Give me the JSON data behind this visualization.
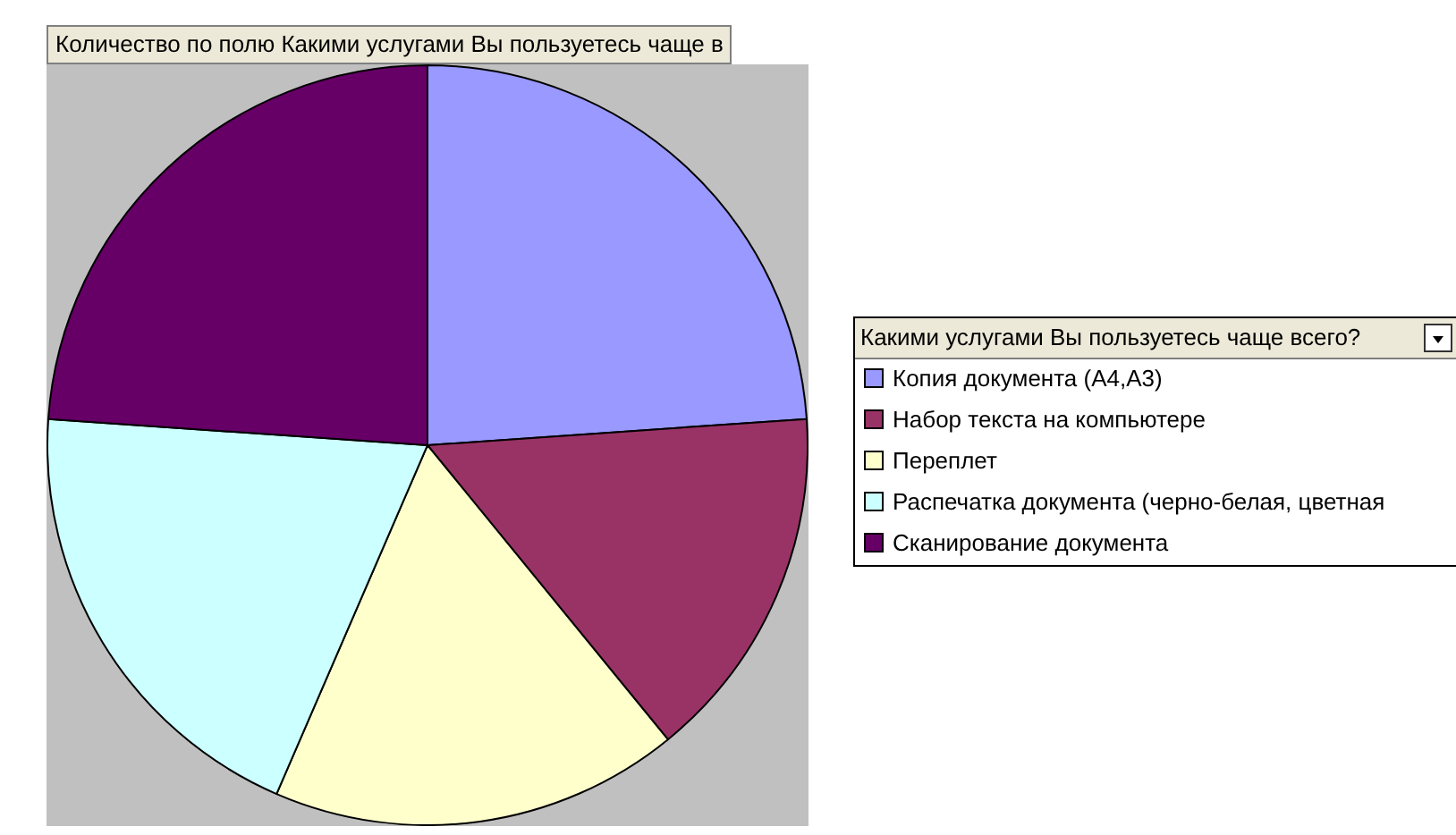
{
  "chart_data": {
    "type": "pie",
    "title": "Количество по полю Какими услугами Вы пользуетесь чаще в",
    "legend_title": "Какими услугами Вы пользуетесь чаще всего?",
    "categories": [
      "Копия документа (А4,А3)",
      "Набор текста на компьютере",
      "Переплет",
      "Распечатка документа (черно-белая, цветная",
      "Сканирование документа"
    ],
    "values": [
      23.9,
      15.2,
      17.4,
      19.6,
      23.9
    ],
    "colors": [
      "#9999ff",
      "#993366",
      "#ffffcc",
      "#ccffff",
      "#660066"
    ],
    "legend": "right"
  }
}
